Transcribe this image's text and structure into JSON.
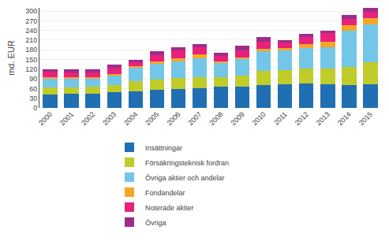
{
  "chart_data": {
    "type": "bar",
    "stacked": true,
    "categories": [
      "2000",
      "2001",
      "2002",
      "2003",
      "2004",
      "2005",
      "2006",
      "2007",
      "2008",
      "2009",
      "2010",
      "2011",
      "2012",
      "2013",
      "2014",
      "2015"
    ],
    "series": [
      {
        "name": "Insättningar",
        "color": "#1F6FB2",
        "values": [
          42,
          44,
          44,
          48,
          52,
          57,
          58,
          62,
          67,
          67,
          70,
          74,
          75,
          73,
          72,
          73
        ]
      },
      {
        "name": "Försäkringsteknisk fordran",
        "color": "#BFCC2A",
        "values": [
          22,
          20,
          22,
          24,
          32,
          32,
          35,
          33,
          28,
          32,
          45,
          44,
          46,
          48,
          55,
          68
        ]
      },
      {
        "name": "Övriga aktier och andelar",
        "color": "#73C6E7",
        "values": [
          28,
          28,
          26,
          30,
          40,
          48,
          52,
          58,
          43,
          52,
          60,
          60,
          65,
          68,
          112,
          118
        ]
      },
      {
        "name": "Fondandelar",
        "color": "#F5A628",
        "values": [
          4,
          4,
          4,
          4,
          5,
          8,
          10,
          12,
          5,
          5,
          8,
          7,
          12,
          15,
          18,
          20
        ]
      },
      {
        "name": "Noterade aktier",
        "color": "#E8217A",
        "values": [
          16,
          15,
          15,
          18,
          12,
          18,
          22,
          22,
          18,
          22,
          22,
          18,
          22,
          27,
          20,
          20
        ]
      },
      {
        "name": "Övriga",
        "color": "#9B2E8C",
        "values": [
          8,
          8,
          8,
          10,
          8,
          12,
          12,
          10,
          10,
          15,
          15,
          8,
          10,
          8,
          10,
          10
        ]
      }
    ],
    "y_label": "md. EUR",
    "ylim": [
      0,
      310
    ],
    "yticks": [
      0,
      30,
      60,
      90,
      120,
      150,
      180,
      210,
      240,
      270,
      300
    ],
    "grid": true,
    "legend": "bottom"
  }
}
